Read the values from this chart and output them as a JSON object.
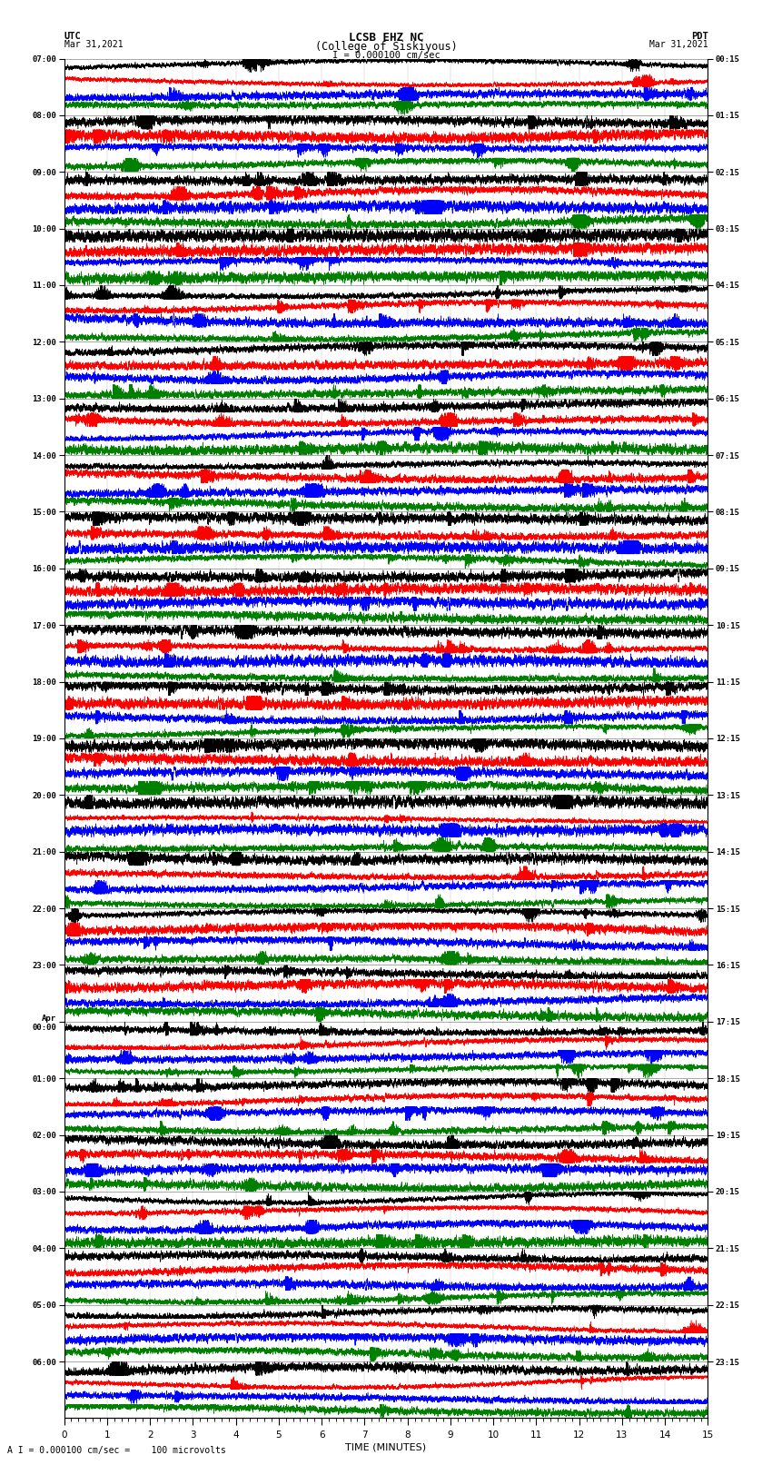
{
  "title_line1": "LCSB EHZ NC",
  "title_line2": "(College of Siskiyous)",
  "scale_label": "I = 0.000100 cm/sec",
  "bottom_label": "A I = 0.000100 cm/sec =    100 microvolts",
  "xlabel": "TIME (MINUTES)",
  "left_header": "UTC",
  "left_date": "Mar 31,2021",
  "right_header": "PDT",
  "right_date": "Mar 31,2021",
  "left_times": [
    "07:00",
    "08:00",
    "09:00",
    "10:00",
    "11:00",
    "12:00",
    "13:00",
    "14:00",
    "15:00",
    "16:00",
    "17:00",
    "18:00",
    "19:00",
    "20:00",
    "21:00",
    "22:00",
    "23:00",
    "Apr\n00:00",
    "01:00",
    "02:00",
    "03:00",
    "04:00",
    "05:00",
    "06:00"
  ],
  "right_times": [
    "00:15",
    "01:15",
    "02:15",
    "03:15",
    "04:15",
    "05:15",
    "06:15",
    "07:15",
    "08:15",
    "09:15",
    "10:15",
    "11:15",
    "12:15",
    "13:15",
    "14:15",
    "15:15",
    "16:15",
    "17:15",
    "18:15",
    "19:15",
    "20:15",
    "21:15",
    "22:15",
    "23:15"
  ],
  "trace_colors": [
    "black",
    "red",
    "blue",
    "green"
  ],
  "n_rows": 24,
  "traces_per_row": 4,
  "minutes": 15,
  "background_color": "white",
  "plot_bg": "white",
  "seed": 42
}
